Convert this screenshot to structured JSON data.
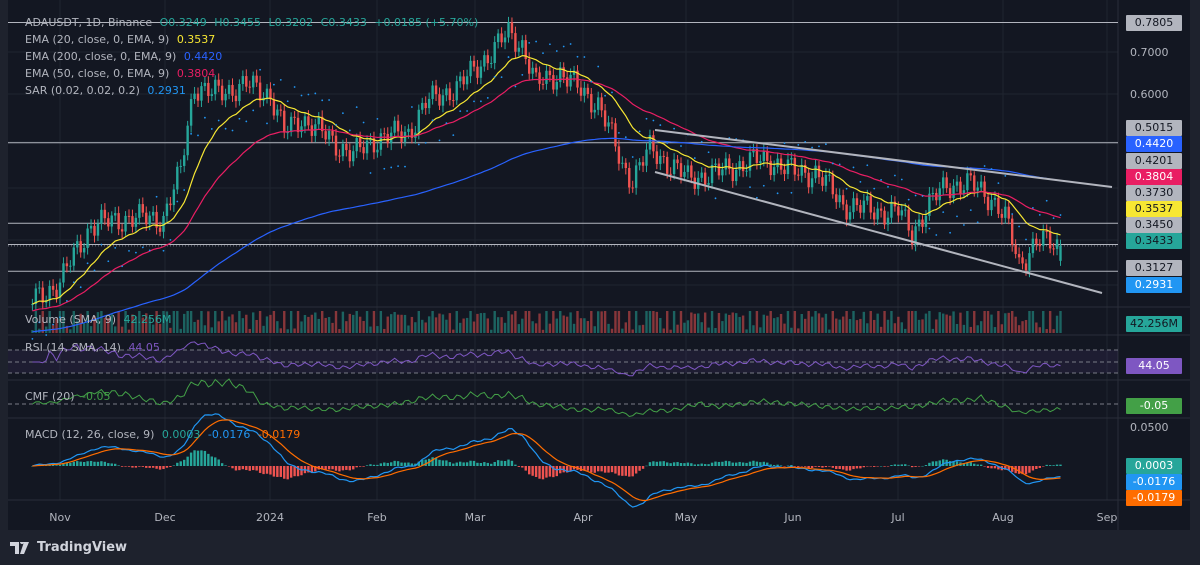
{
  "symbol": {
    "name": "ADAUSDT, 1D, Binance",
    "open": "O0.3249",
    "high": "H0.3455",
    "low": "L0.3202",
    "close": "C0.3433",
    "change": "+0.0185 (+5.70%)"
  },
  "indicators": [
    {
      "label": "EMA (20, close, 0, EMA, 9)",
      "value": "0.3537",
      "color": "#f7e733"
    },
    {
      "label": "EMA (200, close, 0, EMA, 9)",
      "value": "0.4420",
      "color": "#2962ff"
    },
    {
      "label": "EMA (50, close, 0, EMA, 9)",
      "value": "0.3804",
      "color": "#e91e63"
    },
    {
      "label": "SAR (0.02, 0.02, 0.2)",
      "value": "0.2931",
      "color": "#2196f3"
    }
  ],
  "panes": {
    "volume": {
      "label": "Volume (SMA, 9)",
      "value": "42.256M",
      "color": "#26a69a"
    },
    "rsi": {
      "label": "RSI (14, SMA, 14)",
      "value": "44.05",
      "color": "#7e57c2"
    },
    "cmf": {
      "label": "CMF (20)",
      "value": "-0.05",
      "color": "#43a047"
    },
    "macd": {
      "label": "MACD (12, 26, close, 9)",
      "hist": "0.0003",
      "macd": "-0.0176",
      "signal": "-0.0179",
      "axis_tick": "0.0500"
    }
  },
  "price_axis": {
    "ticks": [
      "0.7000",
      "0.6000"
    ],
    "scale": "log"
  },
  "price_labels": [
    {
      "value": "0.7805",
      "bg": "#b2b5be",
      "fg": "#131722"
    },
    {
      "value": "0.5015",
      "bg": "#b2b5be",
      "fg": "#131722"
    },
    {
      "value": "0.4420",
      "bg": "#2962ff",
      "fg": "#ffffff"
    },
    {
      "value": "0.4201",
      "bg": "#b2b5be",
      "fg": "#131722"
    },
    {
      "value": "0.3804",
      "bg": "#e91e63",
      "fg": "#ffffff"
    },
    {
      "value": "0.3730",
      "bg": "#b2b5be",
      "fg": "#131722"
    },
    {
      "value": "0.3537",
      "bg": "#f7e733",
      "fg": "#131722"
    },
    {
      "value": "0.3450",
      "bg": "#b2b5be",
      "fg": "#131722"
    },
    {
      "value": "0.3433",
      "bg": "#26a69a",
      "fg": "#131722"
    },
    {
      "value": "0.3127",
      "bg": "#b2b5be",
      "fg": "#131722"
    },
    {
      "value": "0.2931",
      "bg": "#2196f3",
      "fg": "#ffffff"
    }
  ],
  "pane_labels": [
    {
      "value": "42.256M",
      "bg": "#26a69a",
      "fg": "#131722"
    },
    {
      "value": "44.05",
      "bg": "#7e57c2",
      "fg": "#ffffff"
    },
    {
      "value": "-0.05",
      "bg": "#43a047",
      "fg": "#ffffff"
    },
    {
      "value": "0.0003",
      "bg": "#26a69a",
      "fg": "#ffffff"
    },
    {
      "value": "-0.0176",
      "bg": "#2196f3",
      "fg": "#ffffff"
    },
    {
      "value": "-0.0179",
      "bg": "#ff6d00",
      "fg": "#ffffff"
    }
  ],
  "horizontal_levels": [
    0.7805,
    0.5015,
    0.373,
    0.345,
    0.3433,
    0.3127
  ],
  "time_axis": [
    "Nov",
    "Dec",
    "2024",
    "Feb",
    "Mar",
    "Apr",
    "May",
    "Jun",
    "Jul",
    "Aug",
    "Sep"
  ],
  "colors": {
    "up": "#26a69a",
    "down": "#ef5350",
    "background": "#131722"
  },
  "chart_data": {
    "type": "candlestick",
    "closes_approx": [
      [
        "2023-10-24",
        0.28
      ],
      [
        "2023-11-01",
        0.3
      ],
      [
        "2023-11-10",
        0.37
      ],
      [
        "2023-11-20",
        0.38
      ],
      [
        "2023-12-01",
        0.38
      ],
      [
        "2023-12-06",
        0.45
      ],
      [
        "2023-12-10",
        0.62
      ],
      [
        "2023-12-15",
        0.6
      ],
      [
        "2023-12-25",
        0.62
      ],
      [
        "2024-01-01",
        0.6
      ],
      [
        "2024-01-05",
        0.52
      ],
      [
        "2024-01-10",
        0.55
      ],
      [
        "2024-01-20",
        0.5
      ],
      [
        "2024-01-25",
        0.48
      ],
      [
        "2024-02-01",
        0.51
      ],
      [
        "2024-02-10",
        0.52
      ],
      [
        "2024-02-15",
        0.58
      ],
      [
        "2024-02-25",
        0.62
      ],
      [
        "2024-03-05",
        0.7
      ],
      [
        "2024-03-10",
        0.75
      ],
      [
        "2024-03-14",
        0.72
      ],
      [
        "2024-03-18",
        0.62
      ],
      [
        "2024-03-25",
        0.65
      ],
      [
        "2024-04-01",
        0.6
      ],
      [
        "2024-04-05",
        0.58
      ],
      [
        "2024-04-12",
        0.46
      ],
      [
        "2024-04-15",
        0.44
      ],
      [
        "2024-04-20",
        0.49
      ],
      [
        "2024-05-01",
        0.44
      ],
      [
        "2024-05-10",
        0.45
      ],
      [
        "2024-05-20",
        0.47
      ],
      [
        "2024-05-25",
        0.47
      ],
      [
        "2024-06-01",
        0.45
      ],
      [
        "2024-06-07",
        0.45
      ],
      [
        "2024-06-15",
        0.4
      ],
      [
        "2024-06-25",
        0.39
      ],
      [
        "2024-07-01",
        0.39
      ],
      [
        "2024-07-05",
        0.36
      ],
      [
        "2024-07-10",
        0.4
      ],
      [
        "2024-07-15",
        0.43
      ],
      [
        "2024-07-22",
        0.43
      ],
      [
        "2024-07-28",
        0.41
      ],
      [
        "2024-08-01",
        0.38
      ],
      [
        "2024-08-05",
        0.32
      ],
      [
        "2024-08-10",
        0.35
      ],
      [
        "2024-08-17",
        0.3433
      ]
    ]
  }
}
